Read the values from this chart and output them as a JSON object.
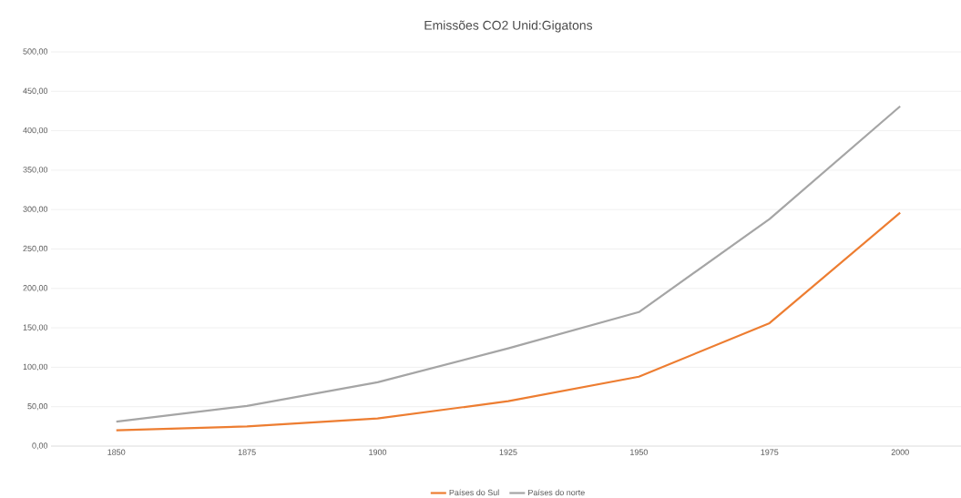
{
  "chart_data": {
    "type": "line",
    "title": "Emissões CO2  Unid:Gigatons",
    "categories": [
      "1850",
      "1875",
      "1900",
      "1925",
      "1950",
      "1975",
      "2000"
    ],
    "series": [
      {
        "name": "Países do Sul",
        "color": "#ed7d31",
        "values": [
          20,
          25,
          35,
          57,
          88,
          156,
          296
        ]
      },
      {
        "name": "Países do norte",
        "color": "#a5a5a5",
        "values": [
          31,
          51,
          81,
          124,
          170,
          288,
          431
        ]
      }
    ],
    "ylim": [
      0,
      500
    ],
    "yticks": [
      {
        "value": 0,
        "label": "0,00"
      },
      {
        "value": 50,
        "label": "50,00"
      },
      {
        "value": 100,
        "label": "100,00"
      },
      {
        "value": 150,
        "label": "150,00"
      },
      {
        "value": 200,
        "label": "200,00"
      },
      {
        "value": 250,
        "label": "250,00"
      },
      {
        "value": 300,
        "label": "300,00"
      },
      {
        "value": 350,
        "label": "350,00"
      },
      {
        "value": 400,
        "label": "400,00"
      },
      {
        "value": 450,
        "label": "450,00"
      },
      {
        "value": 500,
        "label": "500,00"
      }
    ],
    "grid": "y",
    "legend": "bottom",
    "line_style": "solid",
    "marker": "none"
  }
}
